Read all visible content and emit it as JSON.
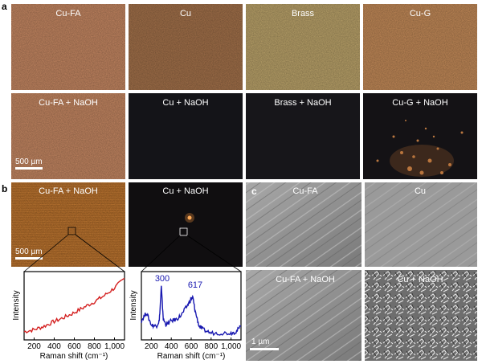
{
  "panel_a": {
    "letter": "a",
    "top_row": [
      "Cu-FA",
      "Cu",
      "Brass",
      "Cu-G"
    ],
    "bottom_row": [
      "Cu-FA + NaOH",
      "Cu + NaOH",
      "Brass + NaOH",
      "Cu-G + NaOH"
    ],
    "scale_bar": "500 µm"
  },
  "panel_b": {
    "letter": "b",
    "images": [
      "Cu-FA + NaOH",
      "Cu + NaOH"
    ],
    "scale_bar": "500 µm"
  },
  "panel_c": {
    "letter": "c",
    "top_row": [
      "Cu-FA",
      "Cu"
    ],
    "bottom_row": [
      "Cu-FA + NaOH",
      "Cu + NaOH"
    ],
    "scale_bar": "1 µm"
  },
  "colors": {
    "cu_fa": "#c58762",
    "cu": "#a3714a",
    "brass": "#bba36a",
    "cu_g": "#c38a58",
    "dark": "#141418",
    "sem": "#8e8e8e",
    "spectrum_red": "#d42020",
    "spectrum_blue": "#1818b0"
  },
  "chart_data": [
    {
      "type": "line",
      "title": "",
      "xlabel": "Raman shift (cm⁻¹)",
      "ylabel": "Intensity",
      "xlim": [
        100,
        1100
      ],
      "ylim": [
        0,
        1
      ],
      "xticks": [
        "200",
        "400",
        "600",
        "800",
        "1,000"
      ],
      "series": [
        {
          "name": "Cu-FA + NaOH",
          "x": [
            100,
            200,
            300,
            400,
            500,
            600,
            700,
            800,
            900,
            1000,
            1100
          ],
          "y": [
            0.12,
            0.15,
            0.2,
            0.27,
            0.33,
            0.4,
            0.48,
            0.56,
            0.65,
            0.76,
            0.9
          ]
        }
      ]
    },
    {
      "type": "line",
      "title": "",
      "xlabel": "Raman shift (cm⁻¹)",
      "ylabel": "Intensity",
      "xlim": [
        100,
        1100
      ],
      "ylim": [
        0,
        1
      ],
      "xticks": [
        "200",
        "400",
        "600",
        "800",
        "1,000"
      ],
      "annotations": [
        "300",
        "617"
      ],
      "series": [
        {
          "name": "Cu + NaOH",
          "x": [
            100,
            150,
            200,
            250,
            280,
            300,
            320,
            350,
            400,
            450,
            500,
            560,
            600,
            617,
            640,
            680,
            720,
            800,
            900,
            1000,
            1050,
            1100
          ],
          "y": [
            0.28,
            0.4,
            0.22,
            0.2,
            0.28,
            0.78,
            0.3,
            0.22,
            0.28,
            0.3,
            0.36,
            0.5,
            0.6,
            0.62,
            0.42,
            0.2,
            0.15,
            0.1,
            0.1,
            0.1,
            0.12,
            0.2
          ]
        }
      ]
    }
  ]
}
